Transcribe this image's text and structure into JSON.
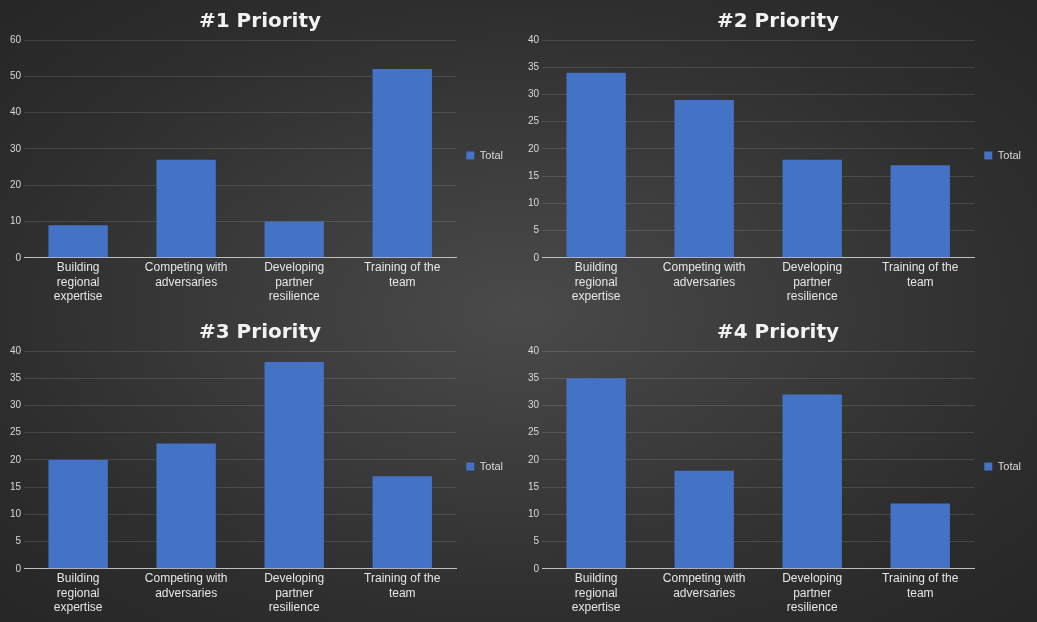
{
  "chart_data": [
    {
      "type": "bar",
      "title": "#1 Priority",
      "categories": [
        "Building regional expertise",
        "Competing with adversaries",
        "Developing partner resilience",
        "Training of the team"
      ],
      "series": [
        {
          "name": "Total",
          "color": "#4472c4",
          "values": [
            9,
            27,
            10,
            52
          ]
        }
      ],
      "ylim": [
        0,
        60
      ],
      "yticks": [
        0,
        10,
        20,
        30,
        40,
        50,
        60
      ],
      "grid": "y",
      "legend": "right"
    },
    {
      "type": "bar",
      "title": "#2 Priority",
      "categories": [
        "Building regional expertise",
        "Competing with adversaries",
        "Developing partner resilience",
        "Training of the team"
      ],
      "series": [
        {
          "name": "Total",
          "color": "#4472c4",
          "values": [
            34,
            29,
            18,
            17
          ]
        }
      ],
      "ylim": [
        0,
        40
      ],
      "yticks": [
        0,
        5,
        10,
        15,
        20,
        25,
        30,
        35,
        40
      ],
      "grid": "y",
      "legend": "right"
    },
    {
      "type": "bar",
      "title": "#3 Priority",
      "categories": [
        "Building regional expertise",
        "Competing with adversaries",
        "Developing partner resilience",
        "Training of the team"
      ],
      "series": [
        {
          "name": "Total",
          "color": "#4472c4",
          "values": [
            20,
            23,
            38,
            17
          ]
        }
      ],
      "ylim": [
        0,
        40
      ],
      "yticks": [
        0,
        5,
        10,
        15,
        20,
        25,
        30,
        35,
        40
      ],
      "grid": "y",
      "legend": "right"
    },
    {
      "type": "bar",
      "title": "#4 Priority",
      "categories": [
        "Building regional expertise",
        "Competing with adversaries",
        "Developing partner resilience",
        "Training of the team"
      ],
      "series": [
        {
          "name": "Total",
          "color": "#4472c4",
          "values": [
            35,
            18,
            32,
            12
          ]
        }
      ],
      "ylim": [
        0,
        40
      ],
      "yticks": [
        0,
        5,
        10,
        15,
        20,
        25,
        30,
        35,
        40
      ],
      "grid": "y",
      "legend": "right"
    }
  ]
}
